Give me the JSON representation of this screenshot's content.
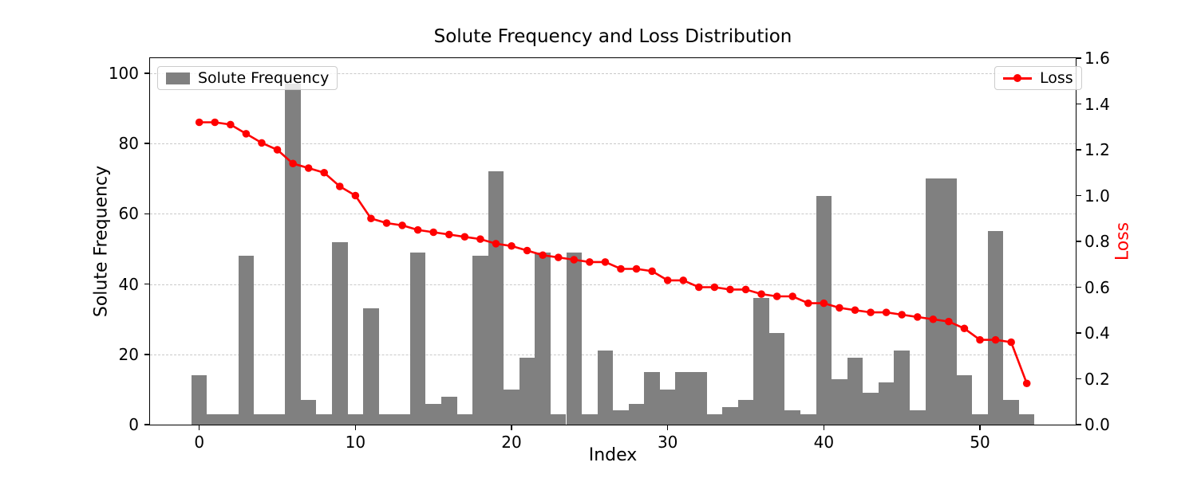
{
  "title": "Solute Frequency and Loss Distribution",
  "x_axis": {
    "label": "Index",
    "ticks": [
      0,
      10,
      20,
      30,
      40,
      50
    ]
  },
  "y_left": {
    "label": "Solute Frequency",
    "ticks": [
      0,
      20,
      40,
      60,
      80,
      100
    ]
  },
  "y_right": {
    "label": "Loss",
    "ticks": [
      0.0,
      0.2,
      0.4,
      0.6,
      0.8,
      1.0,
      1.2,
      1.4,
      1.6
    ]
  },
  "legend": {
    "bars_label": "Solute Frequency",
    "line_label": "Loss"
  },
  "colors": {
    "bar": "#808080",
    "line": "#ff0000",
    "grid": "#c9c9c9",
    "right_axis_label": "#ff0000"
  },
  "chart_data": {
    "type": "bar+line",
    "title": "Solute Frequency and Loss Distribution",
    "xlabel": "Index",
    "x": [
      0,
      1,
      2,
      3,
      4,
      5,
      6,
      7,
      8,
      9,
      10,
      11,
      12,
      13,
      14,
      15,
      16,
      17,
      18,
      19,
      20,
      21,
      22,
      23,
      24,
      25,
      26,
      27,
      28,
      29,
      30,
      31,
      32,
      33,
      34,
      35,
      36,
      37,
      38,
      39,
      40,
      41,
      42,
      43,
      44,
      45,
      46,
      47,
      48,
      49,
      50,
      51,
      52,
      53
    ],
    "series": [
      {
        "name": "Solute Frequency",
        "type": "bar",
        "axis": "left",
        "ylim": [
          0,
          104.3
        ],
        "values": [
          14,
          3,
          3,
          48,
          3,
          3,
          97,
          7,
          3,
          52,
          3,
          33,
          3,
          3,
          49,
          6,
          8,
          3,
          48,
          72,
          10,
          19,
          49,
          3,
          49,
          3,
          21,
          4,
          6,
          15,
          10,
          15,
          15,
          3,
          5,
          7,
          36,
          26,
          4,
          3,
          65,
          13,
          19,
          9,
          12,
          21,
          4,
          70,
          70,
          14,
          3,
          55,
          7,
          3
        ]
      },
      {
        "name": "Loss",
        "type": "line",
        "axis": "right",
        "ylim": [
          0,
          1.6
        ],
        "values": [
          1.32,
          1.32,
          1.31,
          1.27,
          1.23,
          1.2,
          1.14,
          1.12,
          1.1,
          1.04,
          1.0,
          0.9,
          0.88,
          0.87,
          0.85,
          0.84,
          0.83,
          0.82,
          0.81,
          0.79,
          0.78,
          0.76,
          0.74,
          0.73,
          0.72,
          0.71,
          0.71,
          0.68,
          0.68,
          0.67,
          0.63,
          0.63,
          0.6,
          0.6,
          0.59,
          0.59,
          0.57,
          0.56,
          0.56,
          0.53,
          0.53,
          0.51,
          0.5,
          0.49,
          0.49,
          0.48,
          0.47,
          0.46,
          0.45,
          0.42,
          0.37,
          0.37,
          0.36,
          0.18
        ]
      }
    ],
    "legend_positions": {
      "bars": "upper left",
      "line": "upper right"
    },
    "grid": "horizontal-dashed"
  }
}
